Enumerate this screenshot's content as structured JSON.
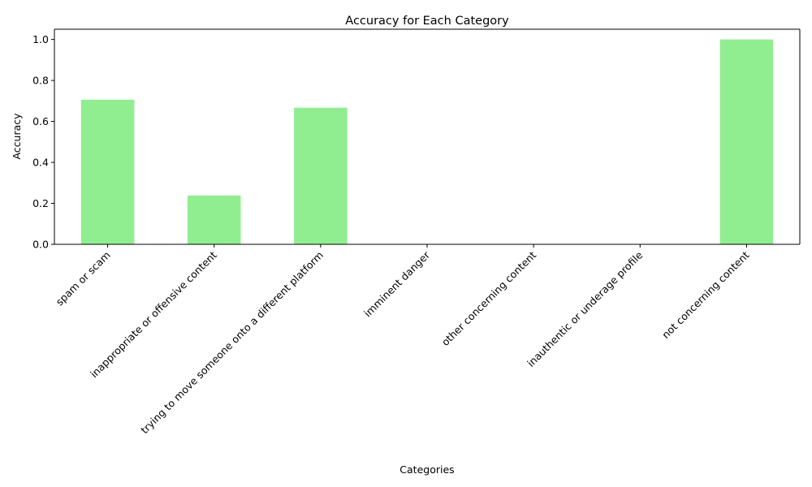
{
  "chart_data": {
    "type": "bar",
    "title": "Accuracy for Each Category",
    "xlabel": "Categories",
    "ylabel": "Accuracy",
    "categories": [
      "spam or scam",
      "inappropriate or offensive content",
      "trying to move someone onto a different platform",
      "imminent danger",
      "other concerning content",
      "inauthentic or underage profile",
      "not concerning content"
    ],
    "values": [
      0.706,
      0.238,
      0.667,
      0.0,
      0.0,
      0.0,
      1.0
    ],
    "ylim": [
      0,
      1.05
    ],
    "yticks": [
      "0.0",
      "0.2",
      "0.4",
      "0.6",
      "0.8",
      "1.0"
    ],
    "grid": false,
    "colors": {
      "bar": "#90ee90",
      "axis": "#000000"
    }
  }
}
